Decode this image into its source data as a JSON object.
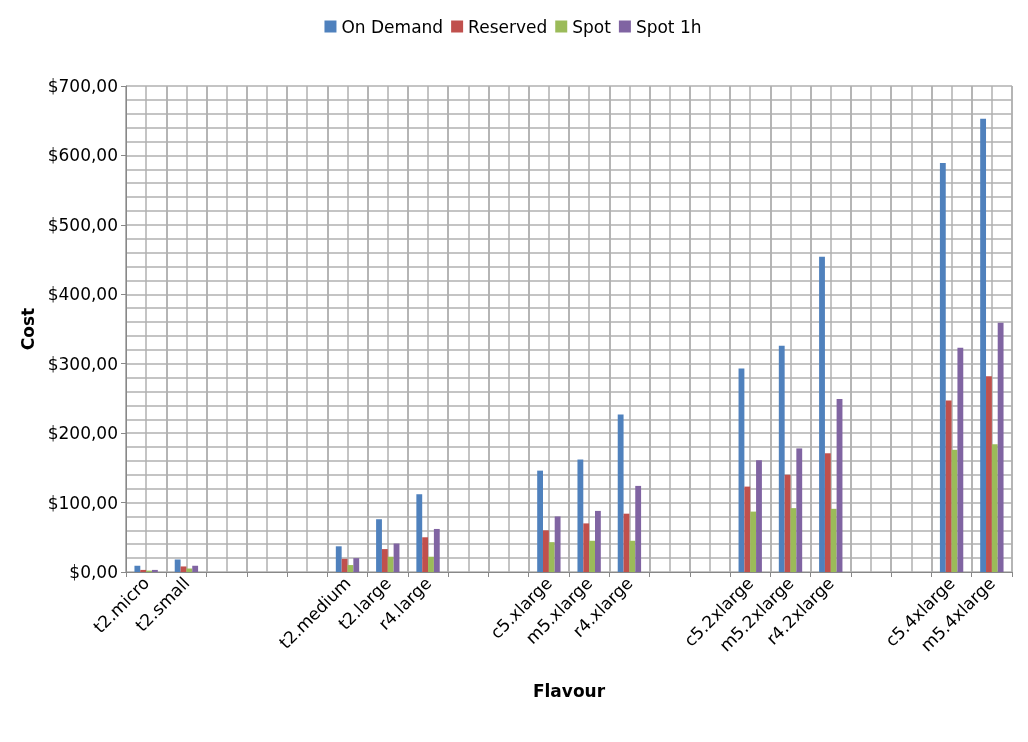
{
  "chart_data": {
    "type": "bar",
    "xlabel": "Flavour",
    "ylabel": "Cost",
    "categories": [
      "t2.micro",
      "t2.small",
      null,
      null,
      null,
      "t2.medium",
      "t2.large",
      "r4.large",
      null,
      null,
      "c5.xlarge",
      "m5.xlarge",
      "r4.xlarge",
      null,
      null,
      "c5.2xlarge",
      "m5.2xlarge",
      "r4.2xlarge",
      null,
      null,
      "c5.4xlarge",
      "m5.4xlarge"
    ],
    "series": [
      {
        "name": "On Demand",
        "color": "#4f81bd",
        "values": [
          9,
          18,
          null,
          null,
          null,
          37,
          76,
          112,
          null,
          null,
          146,
          162,
          227,
          null,
          null,
          293,
          326,
          454,
          null,
          null,
          589,
          653
        ]
      },
      {
        "name": "Reserved",
        "color": "#c0504d",
        "values": [
          3,
          8,
          null,
          null,
          null,
          19,
          33,
          50,
          null,
          null,
          60,
          70,
          84,
          null,
          null,
          123,
          140,
          171,
          null,
          null,
          247,
          282
        ]
      },
      {
        "name": "Spot",
        "color": "#9bbb59",
        "values": [
          2,
          5,
          null,
          null,
          null,
          10,
          22,
          22,
          null,
          null,
          43,
          45,
          45,
          null,
          null,
          87,
          92,
          91,
          null,
          null,
          176,
          184
        ]
      },
      {
        "name": "Spot 1h",
        "color": "#8064a2",
        "values": [
          3,
          9,
          null,
          null,
          null,
          20,
          41,
          62,
          null,
          null,
          80,
          88,
          124,
          null,
          null,
          161,
          178,
          249,
          null,
          null,
          323,
          359
        ]
      }
    ],
    "ylim": [
      0,
      700
    ],
    "yticks": [
      {
        "value": 0,
        "label": "$0,00"
      },
      {
        "value": 100,
        "label": "$100,00"
      },
      {
        "value": 200,
        "label": "$200,00"
      },
      {
        "value": 300,
        "label": "$300,00"
      },
      {
        "value": 400,
        "label": "$400,00"
      },
      {
        "value": 500,
        "label": "$500,00"
      },
      {
        "value": 600,
        "label": "$600,00"
      },
      {
        "value": 700,
        "label": "$700,00"
      }
    ],
    "grid": true,
    "legend": "top"
  }
}
